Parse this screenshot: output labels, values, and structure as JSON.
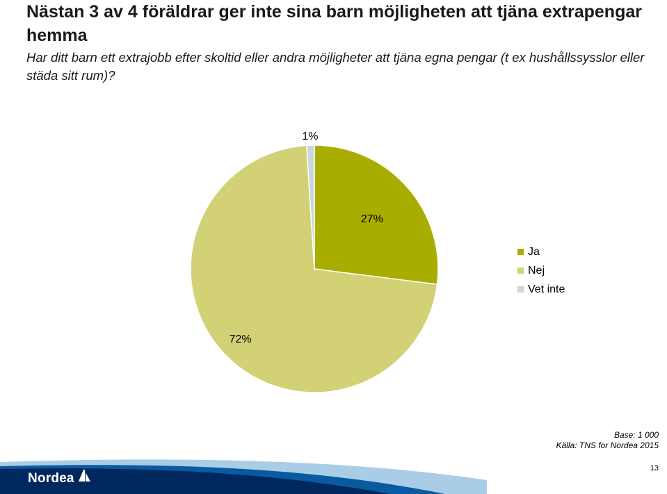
{
  "chart_data": {
    "type": "pie",
    "title": "Nästan 3 av 4 föräldrar ger inte sina barn möjligheten att tjäna extrapengar hemma",
    "subtitle": "Har ditt barn ett extrajobb efter skoltid eller andra möjligheter att tjäna egna pengar (t ex hushållssysslor eller städa sitt rum)?",
    "categories": [
      "Ja",
      "Nej",
      "Vet inte"
    ],
    "values": [
      27,
      72,
      1
    ],
    "data_labels": [
      "27%",
      "72%",
      "1%"
    ],
    "colors": [
      "#a8ad00",
      "#d2d176",
      "#c8d7dc"
    ],
    "legend": "right"
  },
  "source": {
    "base": "Base: 1 000",
    "source_line": "Källa: TNS for Nordea 2015"
  },
  "footer": {
    "brand": "Nordea",
    "page_number": "13",
    "colors": {
      "dark": "#00285f",
      "mid": "#0a5aa0",
      "light": "#a9cde6"
    }
  }
}
